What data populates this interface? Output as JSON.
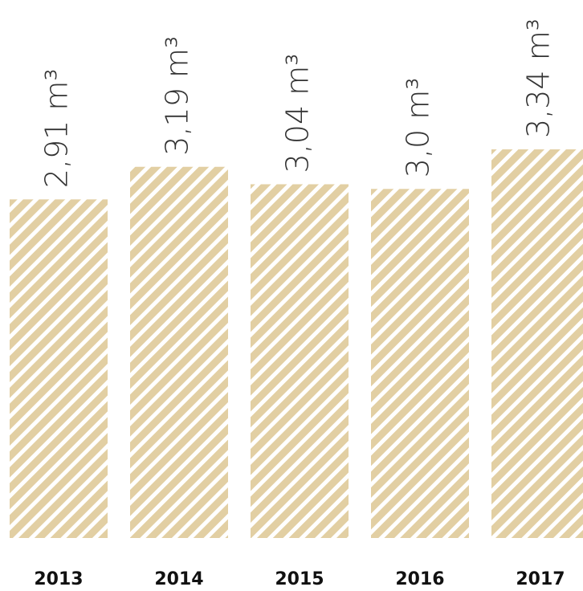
{
  "chart_data": {
    "type": "bar",
    "categories": [
      "2013",
      "2014",
      "2015",
      "2016",
      "2017"
    ],
    "values": [
      2.91,
      3.19,
      3.04,
      3.0,
      3.34
    ],
    "value_labels": [
      "2,91 m³",
      "3,19 m³",
      "3,04 m³",
      "3,0 m³",
      "3,34 m³"
    ],
    "color": "#e2cfa3"
  }
}
